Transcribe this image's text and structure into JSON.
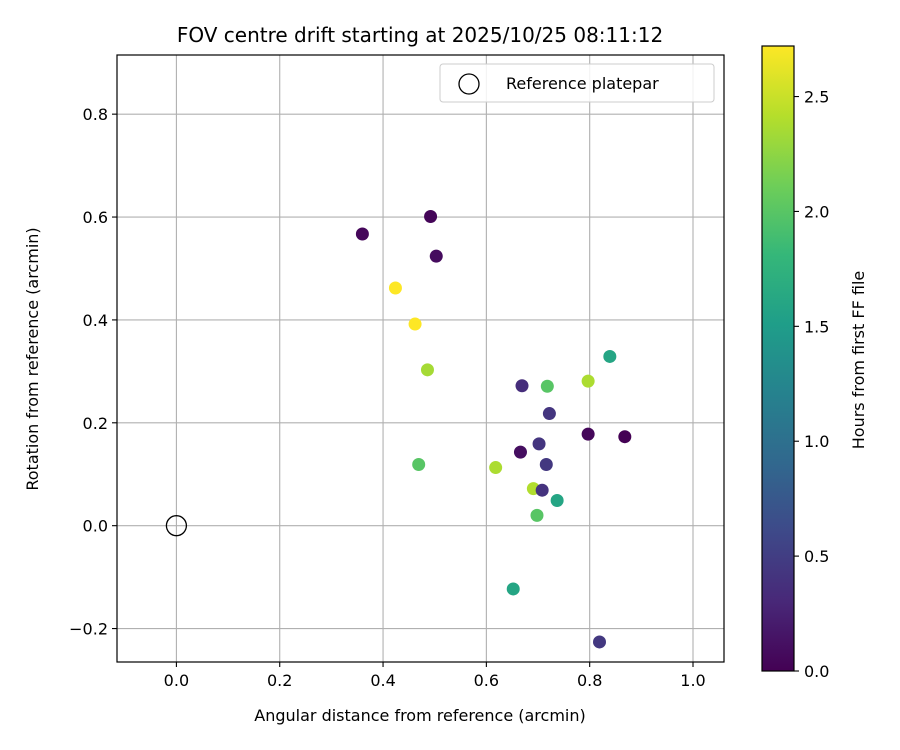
{
  "chart_data": {
    "type": "scatter",
    "title": "FOV centre drift starting at 2025/10/25 08:11:12",
    "xlabel": "Angular distance from reference (arcmin)",
    "ylabel": "Rotation from reference (arcmin)",
    "xlim": [
      -0.115,
      1.06
    ],
    "ylim": [
      -0.265,
      0.915
    ],
    "xticks": [
      0.0,
      0.2,
      0.4,
      0.6,
      0.8,
      1.0
    ],
    "xtick_labels": [
      "0.0",
      "0.2",
      "0.4",
      "0.6",
      "0.8",
      "1.0"
    ],
    "yticks": [
      -0.2,
      0.0,
      0.2,
      0.4,
      0.6,
      0.8
    ],
    "ytick_labels": [
      "−0.2",
      "0.0",
      "0.2",
      "0.4",
      "0.6",
      "0.8"
    ],
    "grid": true,
    "legend": {
      "label": "Reference platepar",
      "placement": "upper right"
    },
    "reference_point": {
      "x": 0.0,
      "y": 0.0
    },
    "colorbar": {
      "label": "Hours from first FF file",
      "range": [
        0.0,
        2.72
      ],
      "ticks": [
        0.0,
        0.5,
        1.0,
        1.5,
        2.0,
        2.5
      ],
      "tick_labels": [
        "0.0",
        "0.5",
        "1.0",
        "1.5",
        "2.0",
        "2.5"
      ],
      "colormap": "viridis"
    },
    "points": [
      {
        "x": 0.36,
        "y": 0.567,
        "hours": 0.05
      },
      {
        "x": 0.492,
        "y": 0.601,
        "hours": 0.03
      },
      {
        "x": 0.503,
        "y": 0.524,
        "hours": 0.08
      },
      {
        "x": 0.424,
        "y": 0.462,
        "hours": 2.72
      },
      {
        "x": 0.462,
        "y": 0.392,
        "hours": 2.72
      },
      {
        "x": 0.486,
        "y": 0.303,
        "hours": 2.35
      },
      {
        "x": 0.839,
        "y": 0.329,
        "hours": 1.6
      },
      {
        "x": 0.669,
        "y": 0.272,
        "hours": 0.35
      },
      {
        "x": 0.718,
        "y": 0.271,
        "hours": 2.0
      },
      {
        "x": 0.797,
        "y": 0.281,
        "hours": 2.38
      },
      {
        "x": 0.722,
        "y": 0.218,
        "hours": 0.42
      },
      {
        "x": 0.797,
        "y": 0.178,
        "hours": 0.05
      },
      {
        "x": 0.868,
        "y": 0.173,
        "hours": 0.0
      },
      {
        "x": 0.702,
        "y": 0.159,
        "hours": 0.42
      },
      {
        "x": 0.666,
        "y": 0.143,
        "hours": 0.1
      },
      {
        "x": 0.716,
        "y": 0.119,
        "hours": 0.45
      },
      {
        "x": 0.469,
        "y": 0.119,
        "hours": 2.0
      },
      {
        "x": 0.618,
        "y": 0.113,
        "hours": 2.38
      },
      {
        "x": 0.691,
        "y": 0.072,
        "hours": 2.4
      },
      {
        "x": 0.708,
        "y": 0.069,
        "hours": 0.4
      },
      {
        "x": 0.737,
        "y": 0.049,
        "hours": 1.6
      },
      {
        "x": 0.698,
        "y": 0.02,
        "hours": 2.0
      },
      {
        "x": 0.652,
        "y": -0.123,
        "hours": 1.6
      },
      {
        "x": 0.819,
        "y": -0.226,
        "hours": 0.45
      }
    ]
  }
}
